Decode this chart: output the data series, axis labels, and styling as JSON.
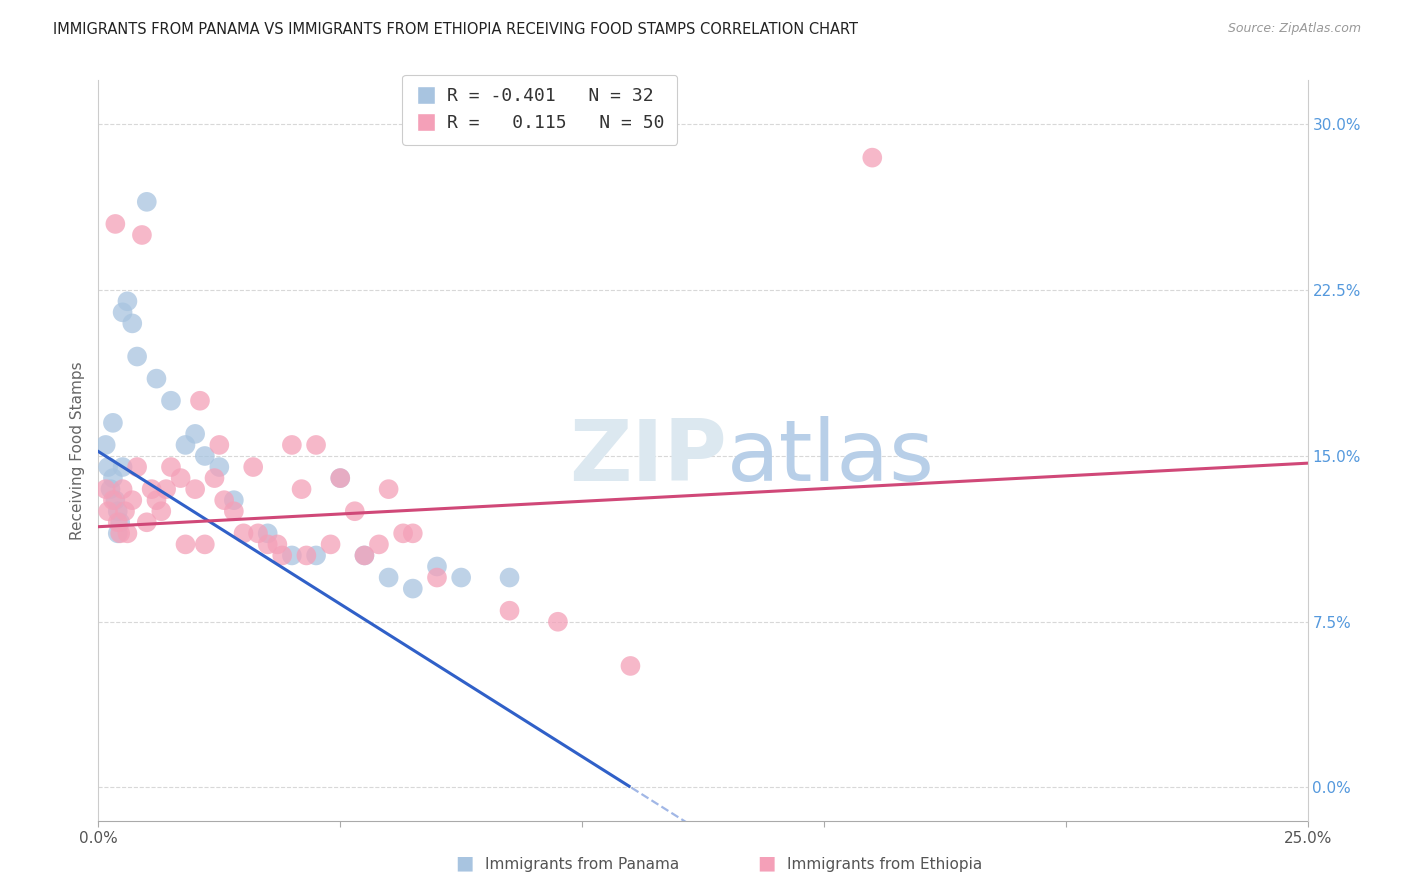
{
  "title": "IMMIGRANTS FROM PANAMA VS IMMIGRANTS FROM ETHIOPIA RECEIVING FOOD STAMPS CORRELATION CHART",
  "source": "Source: ZipAtlas.com",
  "ylabel": "Receiving Food Stamps",
  "ytick_vals": [
    0.0,
    7.5,
    15.0,
    22.5,
    30.0
  ],
  "ytick_labels": [
    "0.0%",
    "7.5%",
    "15.0%",
    "22.5%",
    "30.0%"
  ],
  "xlim": [
    0.0,
    25.0
  ],
  "ylim": [
    -1.5,
    32.0
  ],
  "legend_label1": "Immigrants from Panama",
  "legend_label2": "Immigrants from Ethiopia",
  "R1": -0.401,
  "N1": 32,
  "R2": 0.115,
  "N2": 50,
  "color_panama": "#a8c4e0",
  "color_ethiopia": "#f4a0b8",
  "line_color_panama": "#3060c8",
  "line_color_ethiopia": "#d04878",
  "watermark_zip": "ZIP",
  "watermark_atlas": "atlas",
  "panama_x": [
    0.15,
    0.2,
    0.25,
    0.3,
    0.3,
    0.35,
    0.4,
    0.4,
    0.45,
    0.5,
    0.5,
    0.6,
    0.7,
    0.8,
    1.0,
    1.2,
    1.5,
    1.8,
    2.0,
    2.2,
    2.5,
    2.8,
    3.5,
    4.0,
    4.5,
    5.0,
    5.5,
    6.0,
    6.5,
    7.0,
    7.5,
    8.5
  ],
  "panama_y": [
    15.5,
    14.5,
    13.5,
    16.5,
    14.0,
    13.0,
    12.5,
    11.5,
    12.0,
    21.5,
    14.5,
    22.0,
    21.0,
    19.5,
    26.5,
    18.5,
    17.5,
    15.5,
    16.0,
    15.0,
    14.5,
    13.0,
    11.5,
    10.5,
    10.5,
    14.0,
    10.5,
    9.5,
    9.0,
    10.0,
    9.5,
    9.5
  ],
  "ethiopia_x": [
    0.15,
    0.2,
    0.3,
    0.35,
    0.4,
    0.45,
    0.5,
    0.55,
    0.6,
    0.7,
    0.8,
    0.9,
    1.0,
    1.1,
    1.2,
    1.3,
    1.4,
    1.5,
    1.7,
    1.8,
    2.0,
    2.1,
    2.2,
    2.4,
    2.5,
    2.6,
    2.8,
    3.0,
    3.2,
    3.3,
    3.5,
    3.7,
    3.8,
    4.0,
    4.2,
    4.3,
    4.5,
    4.8,
    5.0,
    5.3,
    5.5,
    5.8,
    6.0,
    6.3,
    6.5,
    7.0,
    8.5,
    9.5,
    11.0,
    16.0
  ],
  "ethiopia_y": [
    13.5,
    12.5,
    13.0,
    25.5,
    12.0,
    11.5,
    13.5,
    12.5,
    11.5,
    13.0,
    14.5,
    25.0,
    12.0,
    13.5,
    13.0,
    12.5,
    13.5,
    14.5,
    14.0,
    11.0,
    13.5,
    17.5,
    11.0,
    14.0,
    15.5,
    13.0,
    12.5,
    11.5,
    14.5,
    11.5,
    11.0,
    11.0,
    10.5,
    15.5,
    13.5,
    10.5,
    15.5,
    11.0,
    14.0,
    12.5,
    10.5,
    11.0,
    13.5,
    11.5,
    11.5,
    9.5,
    8.0,
    7.5,
    5.5,
    28.5
  ]
}
